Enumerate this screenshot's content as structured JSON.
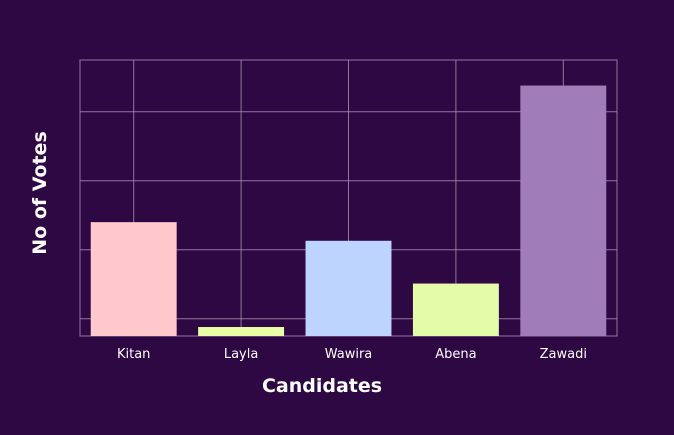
{
  "chart_data": {
    "type": "bar",
    "title": "",
    "xlabel": "Candidates",
    "ylabel": "No of Votes",
    "categories": [
      "Kitan",
      "Layla",
      "Wawira",
      "Abena",
      "Zawadi"
    ],
    "values": [
      16.5,
      1.3,
      13.8,
      7.6,
      36.3
    ],
    "ylim": [
      0,
      40
    ],
    "ytick_values": [
      2.5,
      12.5,
      22.5,
      32.5
    ],
    "ytick_labels": [
      "",
      "",
      "",
      ""
    ],
    "grid": true,
    "legend": "none",
    "colors": [
      "#ffc9cc",
      "#e8ffa6",
      "#bcd4ff",
      "#e4fca8",
      "#a07cb8"
    ],
    "background": "#2e0842",
    "grid_color": "#a992b6"
  }
}
